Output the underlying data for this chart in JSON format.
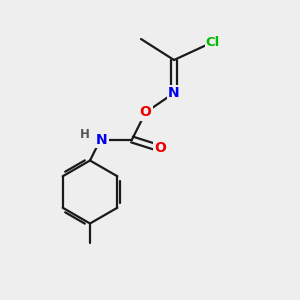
{
  "background_color": "#eeeeee",
  "bond_color": "#1a1a1a",
  "atom_colors": {
    "Cl": "#00bb00",
    "N": "#0000ee",
    "O": "#ee0000",
    "H": "#555555",
    "C": "#1a1a1a"
  },
  "figsize": [
    3.0,
    3.0
  ],
  "dpi": 100,
  "xlim": [
    0,
    10
  ],
  "ylim": [
    0,
    10
  ]
}
